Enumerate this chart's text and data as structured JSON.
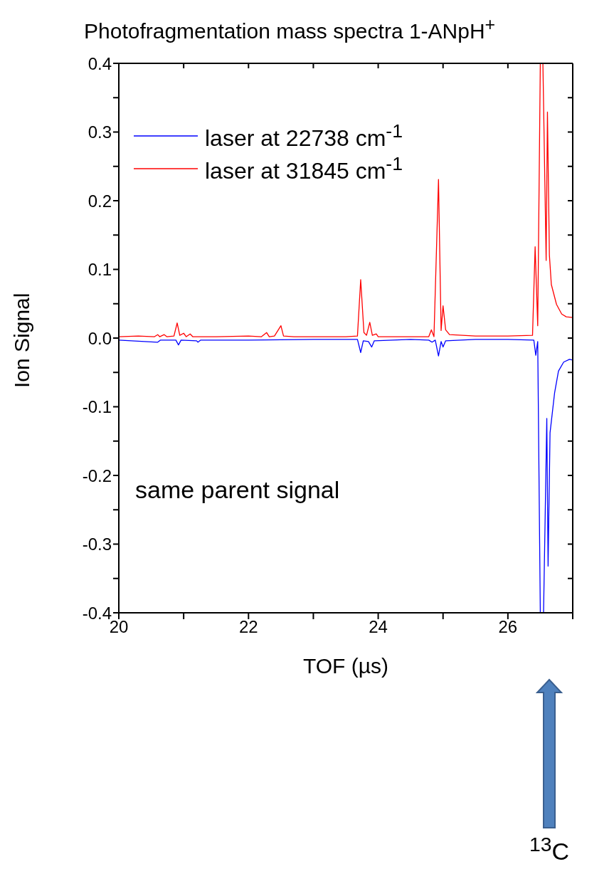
{
  "chart_data": {
    "type": "line",
    "title": "Photofragmentation mass spectra 1-ANpH$^{+}$",
    "xlabel": "TOF (µs)",
    "ylabel": "Ion Signal",
    "xlim": [
      20,
      27
    ],
    "xticks": [
      20,
      {
        "value": 21,
        "label": null
      },
      22,
      {
        "value": 23,
        "label": null
      },
      24,
      {
        "value": 25,
        "label": null
      },
      26,
      {
        "value": 27,
        "label": null
      }
    ],
    "ylim": [
      -0.4,
      0.4
    ],
    "yticks": [
      -0.4,
      {
        "value": -0.35,
        "label": null
      },
      -0.3,
      {
        "value": -0.25,
        "label": null
      },
      -0.2,
      {
        "value": -0.15,
        "label": null
      },
      -0.1,
      {
        "value": -0.05,
        "label": null
      },
      {
        "value": 0,
        "label": "0.0"
      },
      {
        "value": 0.05,
        "label": null
      },
      0.1,
      {
        "value": 0.15,
        "label": null
      },
      0.2,
      {
        "value": 0.25,
        "label": null
      },
      0.3,
      {
        "value": 0.35,
        "label": null
      },
      0.4
    ],
    "legend": "top left",
    "marker": "none",
    "line_style": "solid",
    "annotations": [
      "same parent signal",
      "$^{13}$C"
    ],
    "series": [
      {
        "name": "laser at 22738 cm$^{-1}$",
        "color": "#0000ff",
        "x": [
          20,
          20.6,
          20.64,
          20.88,
          20.92,
          20.96,
          21.2,
          21.22,
          21.26,
          22,
          23,
          23.68,
          23.73,
          23.77,
          23.85,
          23.9,
          23.94,
          24.5,
          24.78,
          24.83,
          24.88,
          24.93,
          24.97,
          25.0,
          25.04,
          25.5,
          26.0,
          26.4,
          26.43,
          26.46,
          26.5,
          26.55,
          26.6,
          26.62,
          26.65,
          26.72,
          26.78,
          26.86,
          26.95,
          27
        ],
        "values": [
          -0.003,
          -0.006,
          -0.003,
          -0.003,
          -0.01,
          -0.003,
          -0.004,
          -0.006,
          -0.003,
          -0.003,
          -0.002,
          -0.002,
          -0.021,
          -0.004,
          -0.005,
          -0.013,
          -0.004,
          -0.002,
          -0.003,
          -0.006,
          -0.003,
          -0.026,
          -0.005,
          -0.013,
          -0.004,
          -0.002,
          -0.002,
          -0.003,
          -0.025,
          -0.005,
          -0.4,
          -0.4,
          -0.117,
          -0.332,
          -0.138,
          -0.08,
          -0.048,
          -0.035,
          -0.031,
          -0.032
        ]
      },
      {
        "name": "laser at 31845 cm$^{-1}$",
        "color": "#ff0000",
        "x": [
          20,
          20.3,
          20.55,
          20.6,
          20.63,
          20.7,
          20.74,
          20.85,
          20.9,
          20.94,
          21.0,
          21.04,
          21.1,
          21.14,
          21.5,
          22.0,
          22.2,
          22.28,
          22.32,
          22.4,
          22.5,
          22.54,
          22.7,
          23.0,
          23.5,
          23.68,
          23.73,
          23.78,
          23.82,
          23.87,
          23.91,
          23.97,
          24.0,
          24.5,
          24.78,
          24.82,
          24.86,
          24.93,
          24.97,
          25.0,
          25.04,
          25.1,
          25.5,
          26.0,
          26.38,
          26.42,
          26.46,
          26.5,
          26.54,
          26.59,
          26.61,
          26.64,
          26.67,
          26.75,
          26.83,
          26.9,
          27
        ],
        "values": [
          0.002,
          0.003,
          0.002,
          0.005,
          0.002,
          0.005,
          0.002,
          0.003,
          0.022,
          0.004,
          0.007,
          0.002,
          0.006,
          0.002,
          0.002,
          0.003,
          0.002,
          0.008,
          0.002,
          0.003,
          0.018,
          0.003,
          0.002,
          0.002,
          0.002,
          0.003,
          0.085,
          0.008,
          0.004,
          0.023,
          0.004,
          0.006,
          0.002,
          0.002,
          0.002,
          0.012,
          0.002,
          0.231,
          0.011,
          0.047,
          0.012,
          0.005,
          0.003,
          0.003,
          0.004,
          0.133,
          0.018,
          0.4,
          0.4,
          0.113,
          0.329,
          0.121,
          0.078,
          0.049,
          0.035,
          0.031,
          0.03
        ]
      }
    ]
  }
}
